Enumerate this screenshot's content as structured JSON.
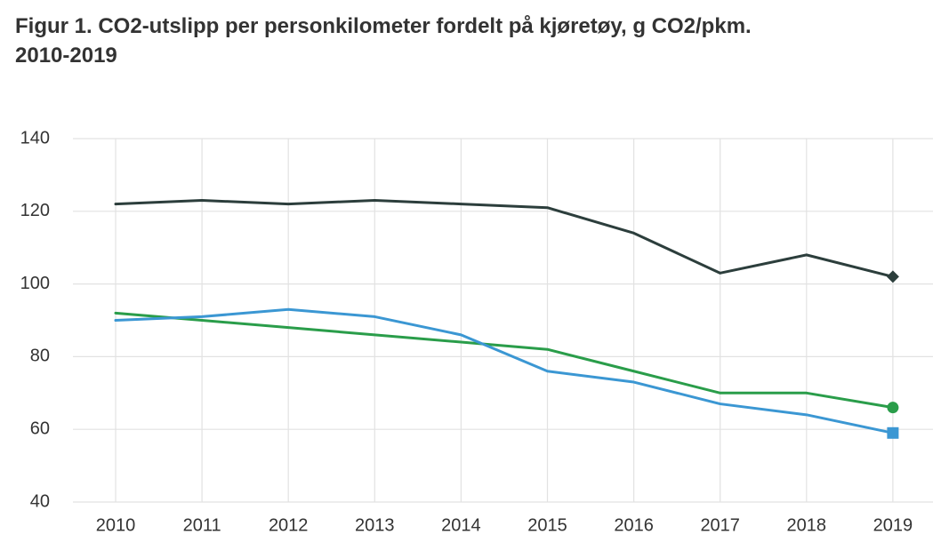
{
  "chart_data": {
    "type": "line",
    "title": "Figur 1. CO2-utslipp per personkilometer fordelt på kjøretøy, g CO2/pkm. 2010-2019",
    "xlabel": "",
    "ylabel": "",
    "x": [
      "2010",
      "2011",
      "2012",
      "2013",
      "2014",
      "2015",
      "2016",
      "2017",
      "2018",
      "2019"
    ],
    "y_ticks": [
      "40",
      "60",
      "80",
      "100",
      "120",
      "140"
    ],
    "ylim": [
      40,
      140
    ],
    "grid": true,
    "legend": "none",
    "series": [
      {
        "color": "#2c3e3c",
        "marker": "diamond",
        "values": [
          122,
          123,
          122,
          123,
          122,
          121,
          114,
          103,
          108,
          102
        ]
      },
      {
        "color": "#2a9d4a",
        "marker": "circle",
        "values": [
          92,
          90,
          88,
          86,
          84,
          82,
          76,
          70,
          70,
          66
        ]
      },
      {
        "color": "#3b97d3",
        "marker": "square",
        "values": [
          90,
          91,
          93,
          91,
          86,
          76,
          73,
          67,
          64,
          59
        ]
      }
    ]
  },
  "style": {
    "grid_color": "#e2e2e2",
    "text_color": "#333333"
  }
}
